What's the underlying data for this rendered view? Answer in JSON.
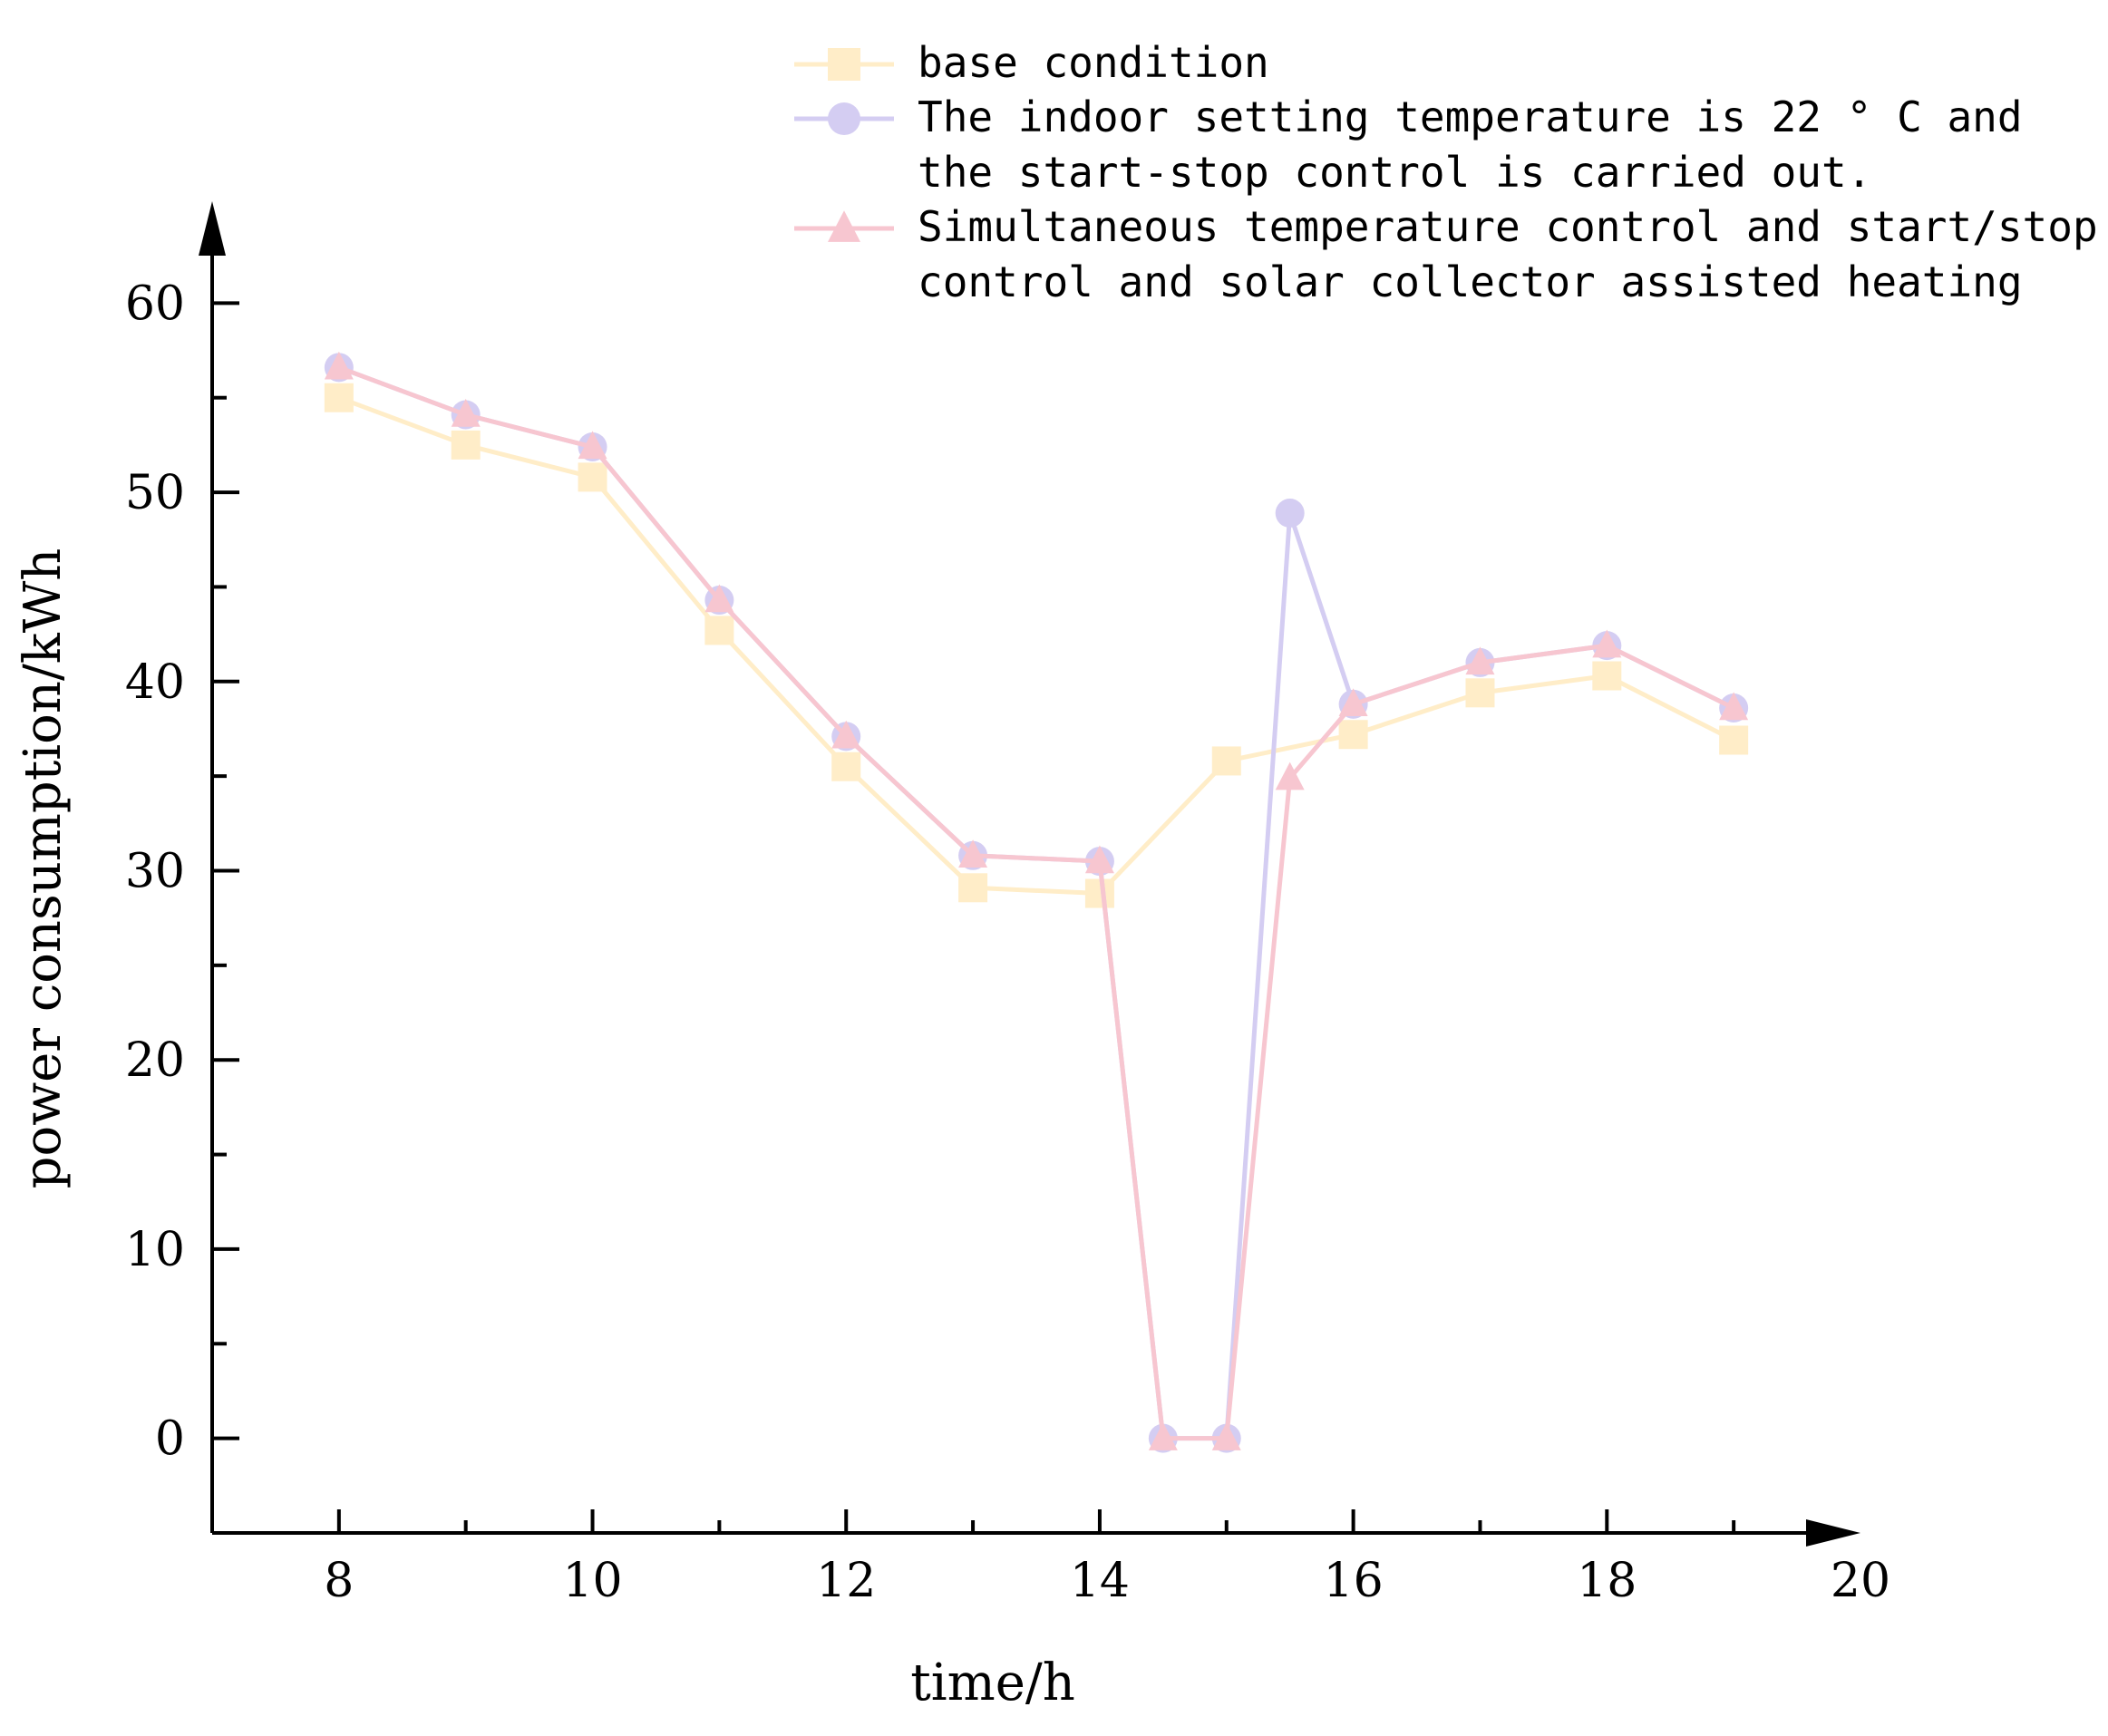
{
  "chart_data": {
    "type": "line",
    "title": "",
    "xlabel": "time/h",
    "ylabel": "power consumption/kWh",
    "xlim": [
      7,
      20
    ],
    "ylim": [
      -5,
      65
    ],
    "x_ticks": [
      8,
      10,
      12,
      14,
      16,
      18,
      20
    ],
    "x_tick_labels": [
      "8",
      "10",
      "12",
      "14",
      "16",
      "18",
      "20"
    ],
    "y_ticks": [
      0,
      10,
      20,
      30,
      40,
      50,
      60
    ],
    "y_tick_labels": [
      "0",
      "10",
      "20",
      "30",
      "40",
      "50",
      "60"
    ],
    "grid": false,
    "legend_position": "top-right",
    "series": [
      {
        "name": "base condition",
        "legend_lines": [
          "base condition"
        ],
        "marker": "square",
        "color": "#FFEDC8",
        "x": [
          8,
          9,
          10,
          11,
          12,
          13,
          14,
          15,
          16,
          17,
          18,
          19
        ],
        "values": [
          55.0,
          52.5,
          50.8,
          42.7,
          35.5,
          29.1,
          28.8,
          35.8,
          37.2,
          39.4,
          40.3,
          36.9
        ]
      },
      {
        "name": "The indoor setting temperature is 22 ° C and the start-stop control is carried out.",
        "legend_lines": [
          "The indoor setting temperature is 22 ° C and",
          " the start-stop control is carried out."
        ],
        "marker": "circle",
        "color": "#D4CDF2",
        "x": [
          8,
          9,
          10,
          11,
          12,
          13,
          14,
          14.5,
          15,
          15.5,
          16,
          17,
          18,
          19
        ],
        "values": [
          56.6,
          54.1,
          52.4,
          44.3,
          37.1,
          30.8,
          30.5,
          0,
          0,
          48.9,
          38.8,
          41.0,
          41.9,
          38.6
        ]
      },
      {
        "name": "Simultaneous temperature control and start/stop control and solar collector assisted heating",
        "legend_lines": [
          "Simultaneous temperature control and start/stop",
          " control and solar collector assisted heating"
        ],
        "marker": "triangle",
        "color": "#F7C6D0",
        "x": [
          8,
          9,
          10,
          11,
          12,
          13,
          14,
          14.5,
          15,
          15.5,
          16,
          17,
          18,
          19
        ],
        "values": [
          56.6,
          54.1,
          52.4,
          44.3,
          37.1,
          30.8,
          30.5,
          0,
          0,
          34.9,
          38.8,
          41.0,
          41.9,
          38.6
        ]
      }
    ]
  }
}
